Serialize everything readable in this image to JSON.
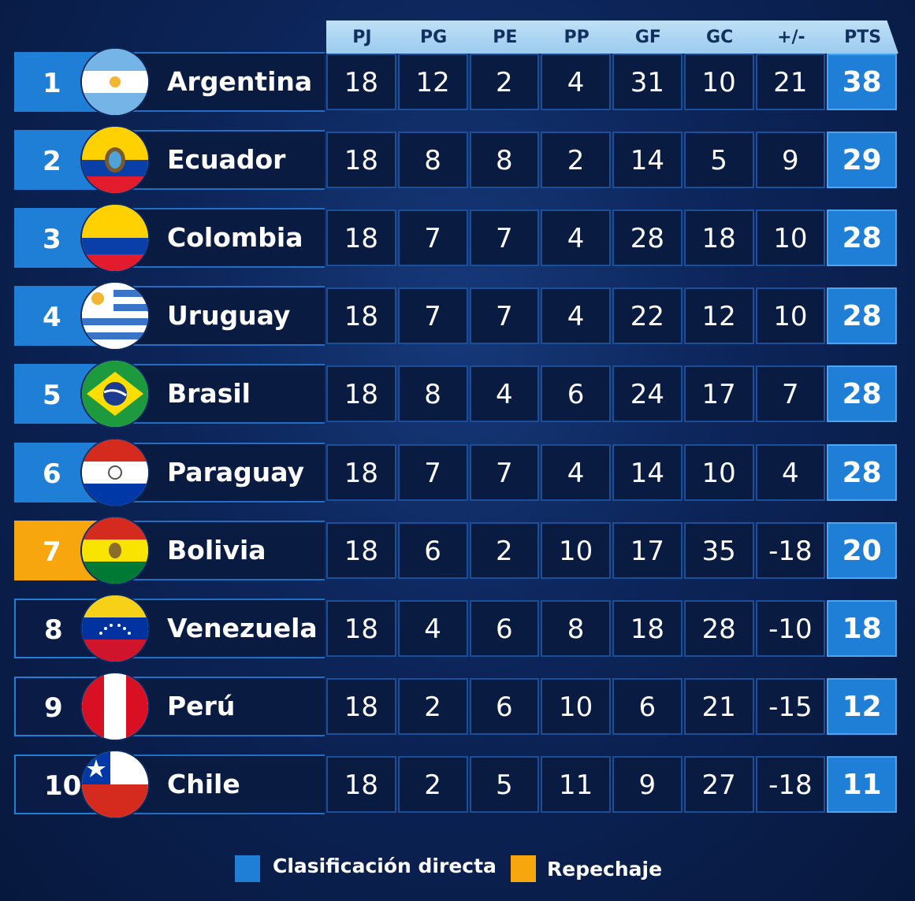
{
  "header": {
    "columns": [
      "PJ",
      "PG",
      "PE",
      "PP",
      "GF",
      "GC",
      "+/-",
      "PTS"
    ]
  },
  "colors": {
    "direct": "#1f7fd6",
    "repechaje": "#f7a70d"
  },
  "rows": [
    {
      "rank": "1",
      "team": "Argentina",
      "flag": "argentina-flag-icon",
      "tier": "direct",
      "stats": [
        "18",
        "12",
        "2",
        "4",
        "31",
        "10",
        "21"
      ],
      "pts": "38"
    },
    {
      "rank": "2",
      "team": "Ecuador",
      "flag": "ecuador-flag-icon",
      "tier": "direct",
      "stats": [
        "18",
        "8",
        "8",
        "2",
        "14",
        "5",
        "9"
      ],
      "pts": "29"
    },
    {
      "rank": "3",
      "team": "Colombia",
      "flag": "colombia-flag-icon",
      "tier": "direct",
      "stats": [
        "18",
        "7",
        "7",
        "4",
        "28",
        "18",
        "10"
      ],
      "pts": "28"
    },
    {
      "rank": "4",
      "team": "Uruguay",
      "flag": "uruguay-flag-icon",
      "tier": "direct",
      "stats": [
        "18",
        "7",
        "7",
        "4",
        "22",
        "12",
        "10"
      ],
      "pts": "28"
    },
    {
      "rank": "5",
      "team": "Brasil",
      "flag": "brazil-flag-icon",
      "tier": "direct",
      "stats": [
        "18",
        "8",
        "4",
        "6",
        "24",
        "17",
        "7"
      ],
      "pts": "28"
    },
    {
      "rank": "6",
      "team": "Paraguay",
      "flag": "paraguay-flag-icon",
      "tier": "direct",
      "stats": [
        "18",
        "7",
        "7",
        "4",
        "14",
        "10",
        "4"
      ],
      "pts": "28"
    },
    {
      "rank": "7",
      "team": "Bolivia",
      "flag": "bolivia-flag-icon",
      "tier": "repechaje",
      "stats": [
        "18",
        "6",
        "2",
        "10",
        "17",
        "35",
        "-18"
      ],
      "pts": "20"
    },
    {
      "rank": "8",
      "team": "Venezuela",
      "flag": "venezuela-flag-icon",
      "tier": "none",
      "stats": [
        "18",
        "4",
        "6",
        "8",
        "18",
        "28",
        "-10"
      ],
      "pts": "18"
    },
    {
      "rank": "9",
      "team": "Perú",
      "flag": "peru-flag-icon",
      "tier": "none",
      "stats": [
        "18",
        "2",
        "6",
        "10",
        "6",
        "21",
        "-15"
      ],
      "pts": "12"
    },
    {
      "rank": "10",
      "team": "Chile",
      "flag": "chile-flag-icon",
      "tier": "none",
      "stats": [
        "18",
        "2",
        "5",
        "11",
        "9",
        "27",
        "-18"
      ],
      "pts": "11"
    }
  ],
  "legend": {
    "direct": "Clasificación directa",
    "repechaje": "Repechaje"
  }
}
